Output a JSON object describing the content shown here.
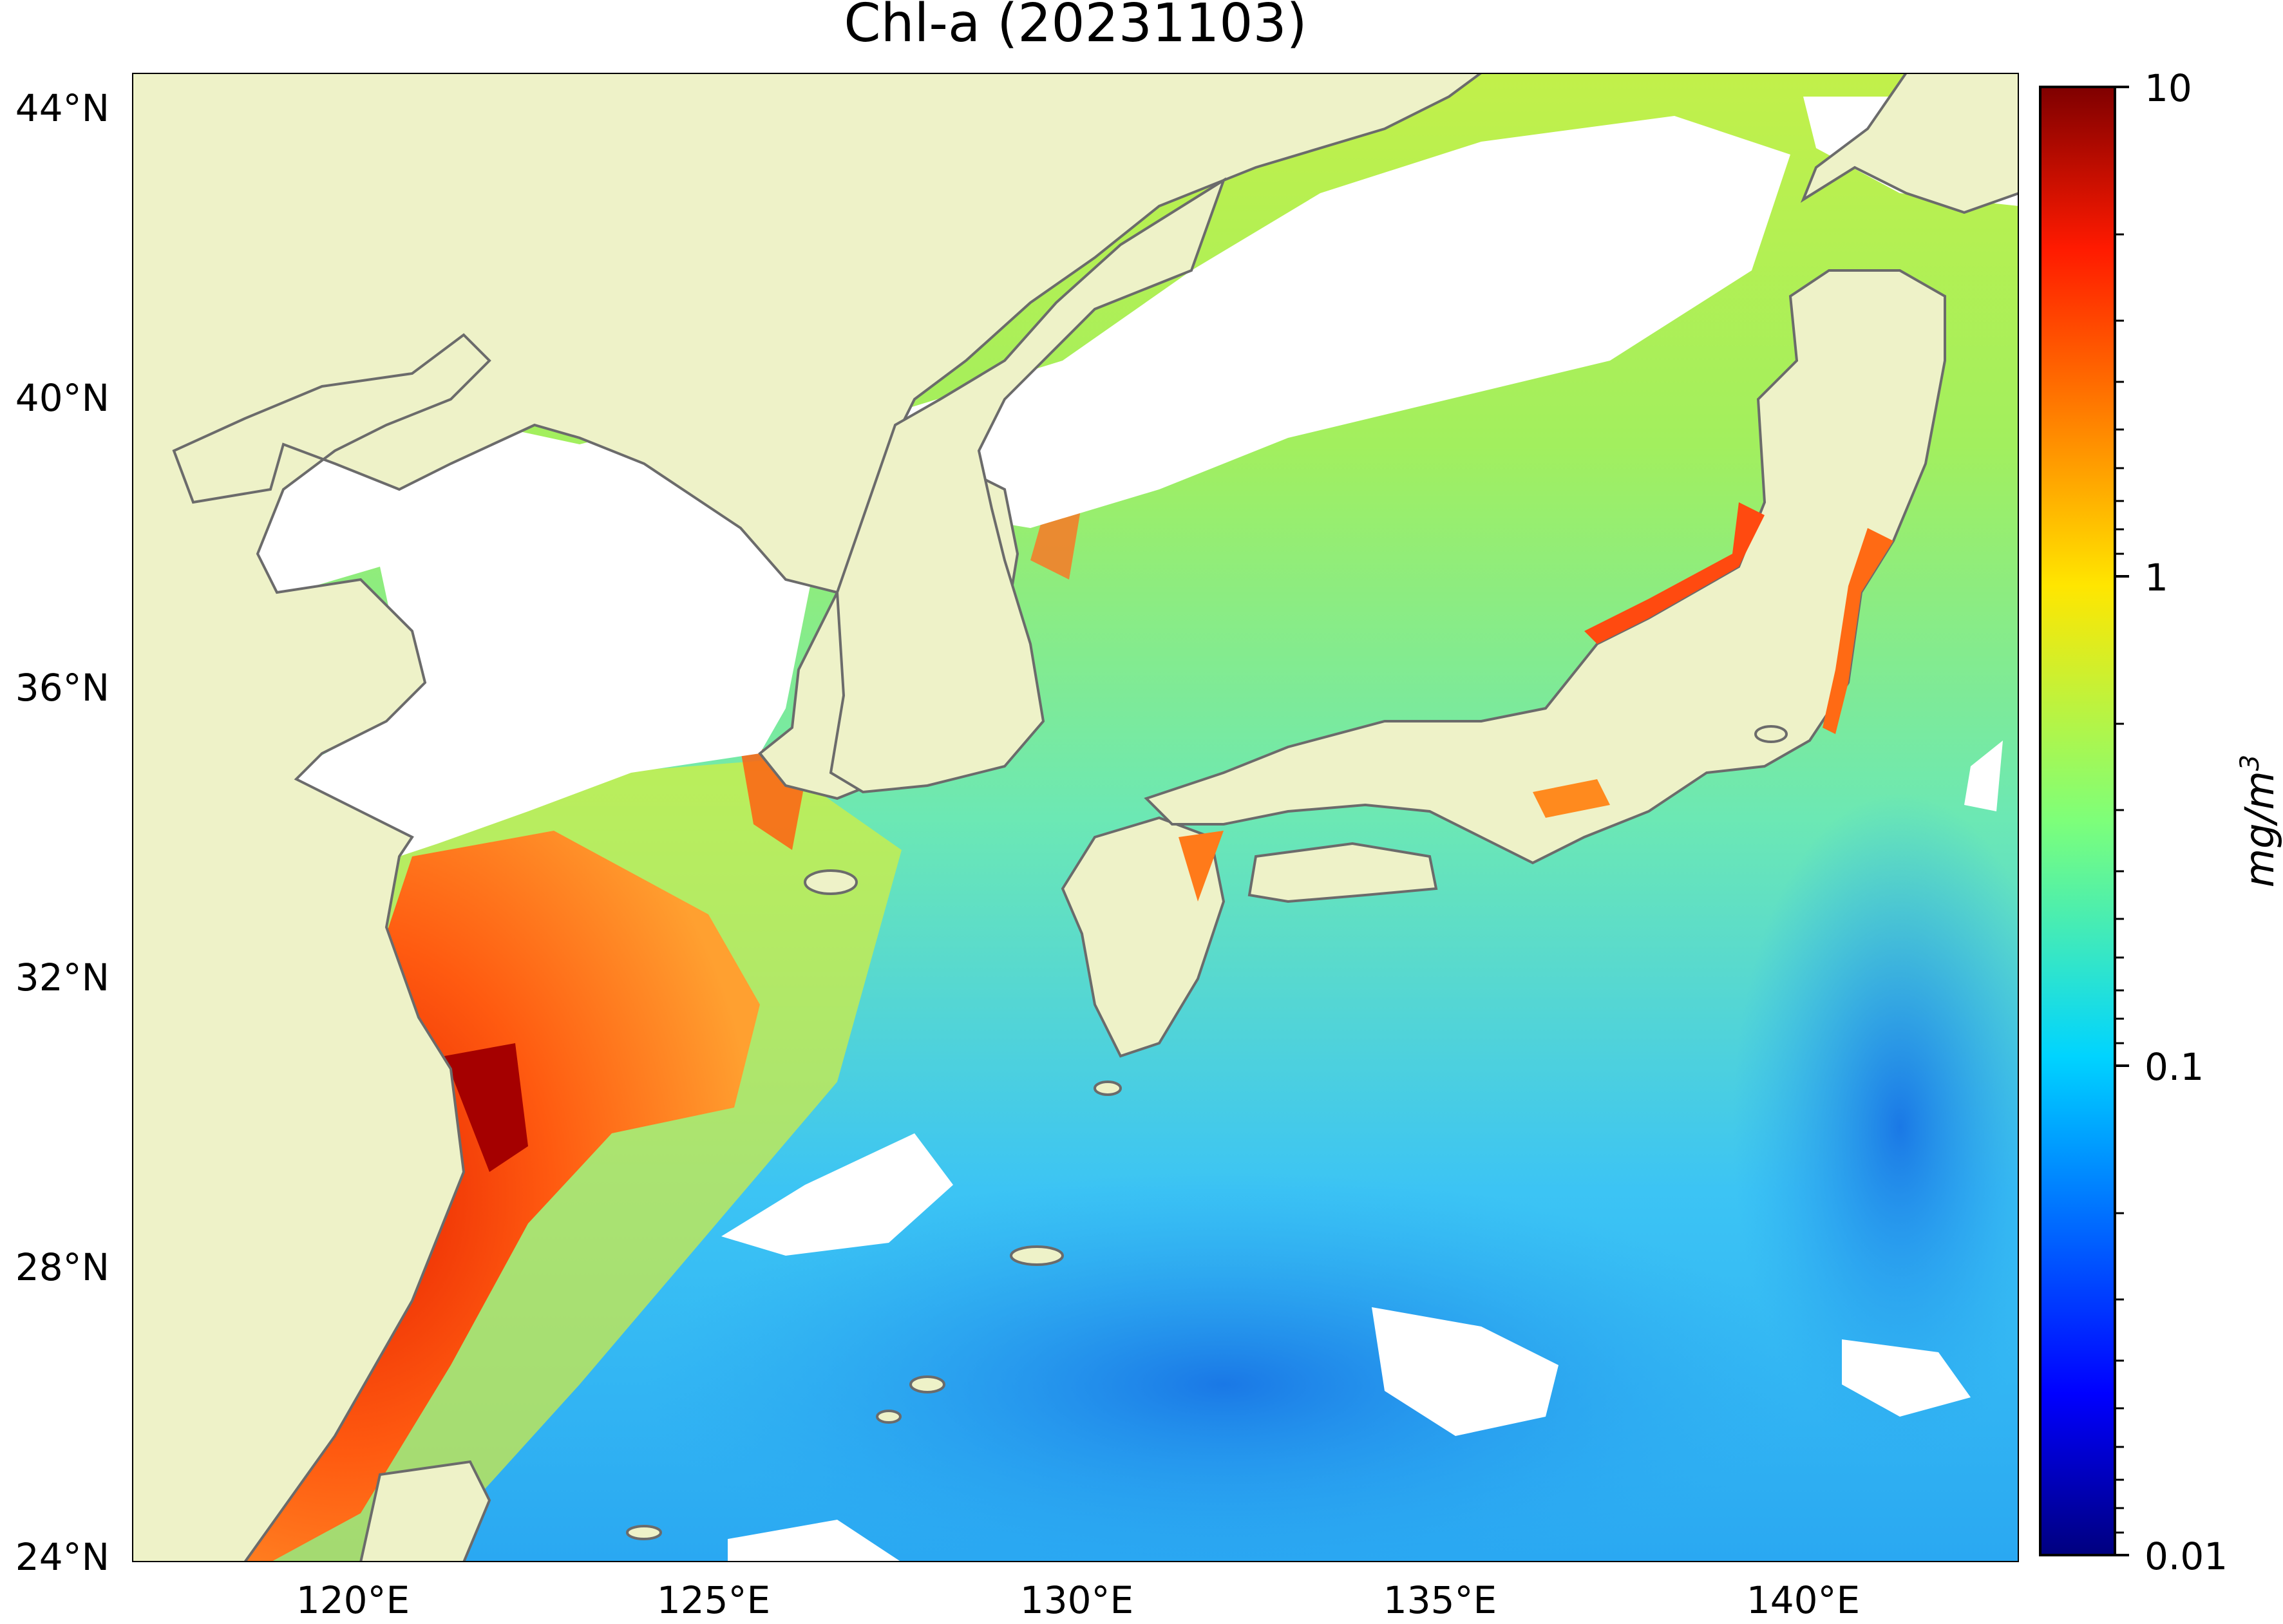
{
  "title": "Chl-a (20231103)",
  "map": {
    "lat_ticks": [
      "44°N",
      "40°N",
      "36°N",
      "32°N",
      "28°N",
      "24°N"
    ],
    "lon_ticks": [
      "120°E",
      "125°E",
      "130°E",
      "135°E",
      "140°E"
    ],
    "lat_range": [
      24,
      44.5
    ],
    "lon_range": [
      117,
      143
    ],
    "land_color": "#eef2c8",
    "no_data_color": "#ffffff",
    "coastline_color": "#6b6b6b"
  },
  "colorbar": {
    "scale": "log",
    "colormap": "jet",
    "range": [
      0.01,
      10
    ],
    "tick_labels": [
      "10",
      "1",
      "0.1",
      "0.01"
    ],
    "unit_label": "mg/m",
    "unit_superscript": "3"
  }
}
